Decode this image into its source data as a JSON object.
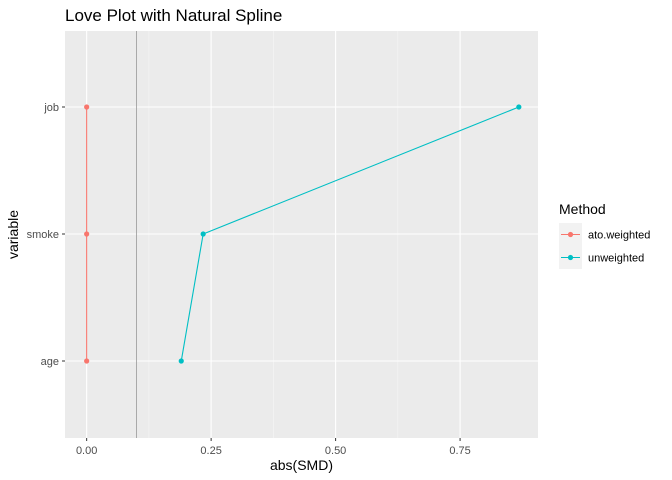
{
  "chart_data": {
    "type": "line",
    "title": "Love Plot with Natural Spline",
    "xlabel": "abs(SMD)",
    "ylabel": "variable",
    "categories": [
      "age",
      "smoke",
      "job"
    ],
    "xlim": [
      -0.0435,
      0.9065
    ],
    "x_ticks": [
      0.0,
      0.25,
      0.5,
      0.75
    ],
    "x_tick_labels": [
      "0.00",
      "0.25",
      "0.50",
      "0.75"
    ],
    "threshold_line": 0.1,
    "grid": true,
    "legend": {
      "title": "Method",
      "position": "right"
    },
    "series": [
      {
        "name": "ato.weighted",
        "color": "#F8766D",
        "values": [
          0.0,
          0.0,
          0.0
        ]
      },
      {
        "name": "unweighted",
        "color": "#00BFC4",
        "values": [
          0.19,
          0.234,
          0.868
        ]
      }
    ]
  }
}
